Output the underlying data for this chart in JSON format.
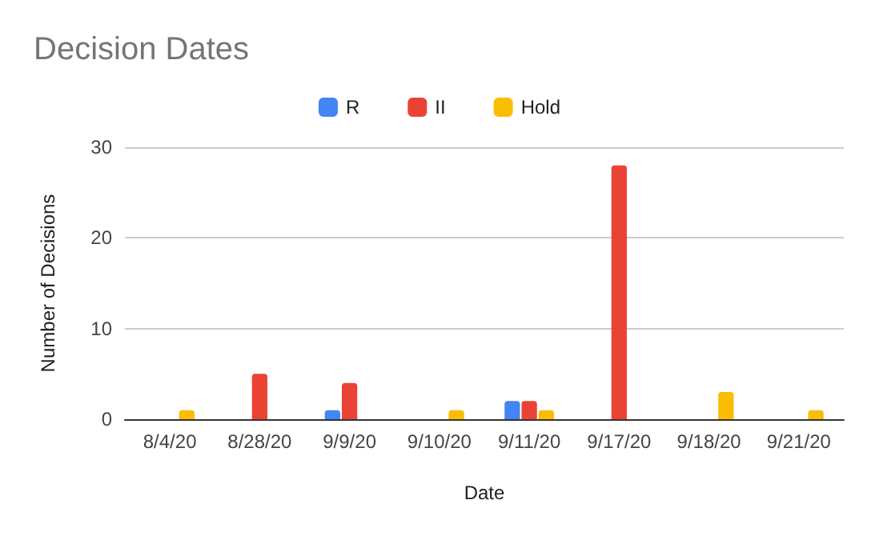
{
  "chart_data": {
    "type": "bar",
    "title": "Decision Dates",
    "xlabel": "Date",
    "ylabel": "Number of Decisions",
    "categories": [
      "8/4/20",
      "8/28/20",
      "9/9/20",
      "9/10/20",
      "9/11/20",
      "9/17/20",
      "9/18/20",
      "9/21/20"
    ],
    "series": [
      {
        "name": "R",
        "color": "#4285f4",
        "values": [
          0,
          0,
          1,
          0,
          2,
          0,
          0,
          0
        ]
      },
      {
        "name": "II",
        "color": "#ea4335",
        "values": [
          0,
          5,
          4,
          0,
          2,
          28,
          0,
          0
        ]
      },
      {
        "name": "Hold",
        "color": "#fbbc04",
        "values": [
          1,
          0,
          0,
          1,
          1,
          0,
          3,
          1
        ]
      }
    ],
    "ylim": [
      0,
      30
    ],
    "yticks": [
      0,
      10,
      20,
      30
    ],
    "grid": "y",
    "legend": "top"
  }
}
